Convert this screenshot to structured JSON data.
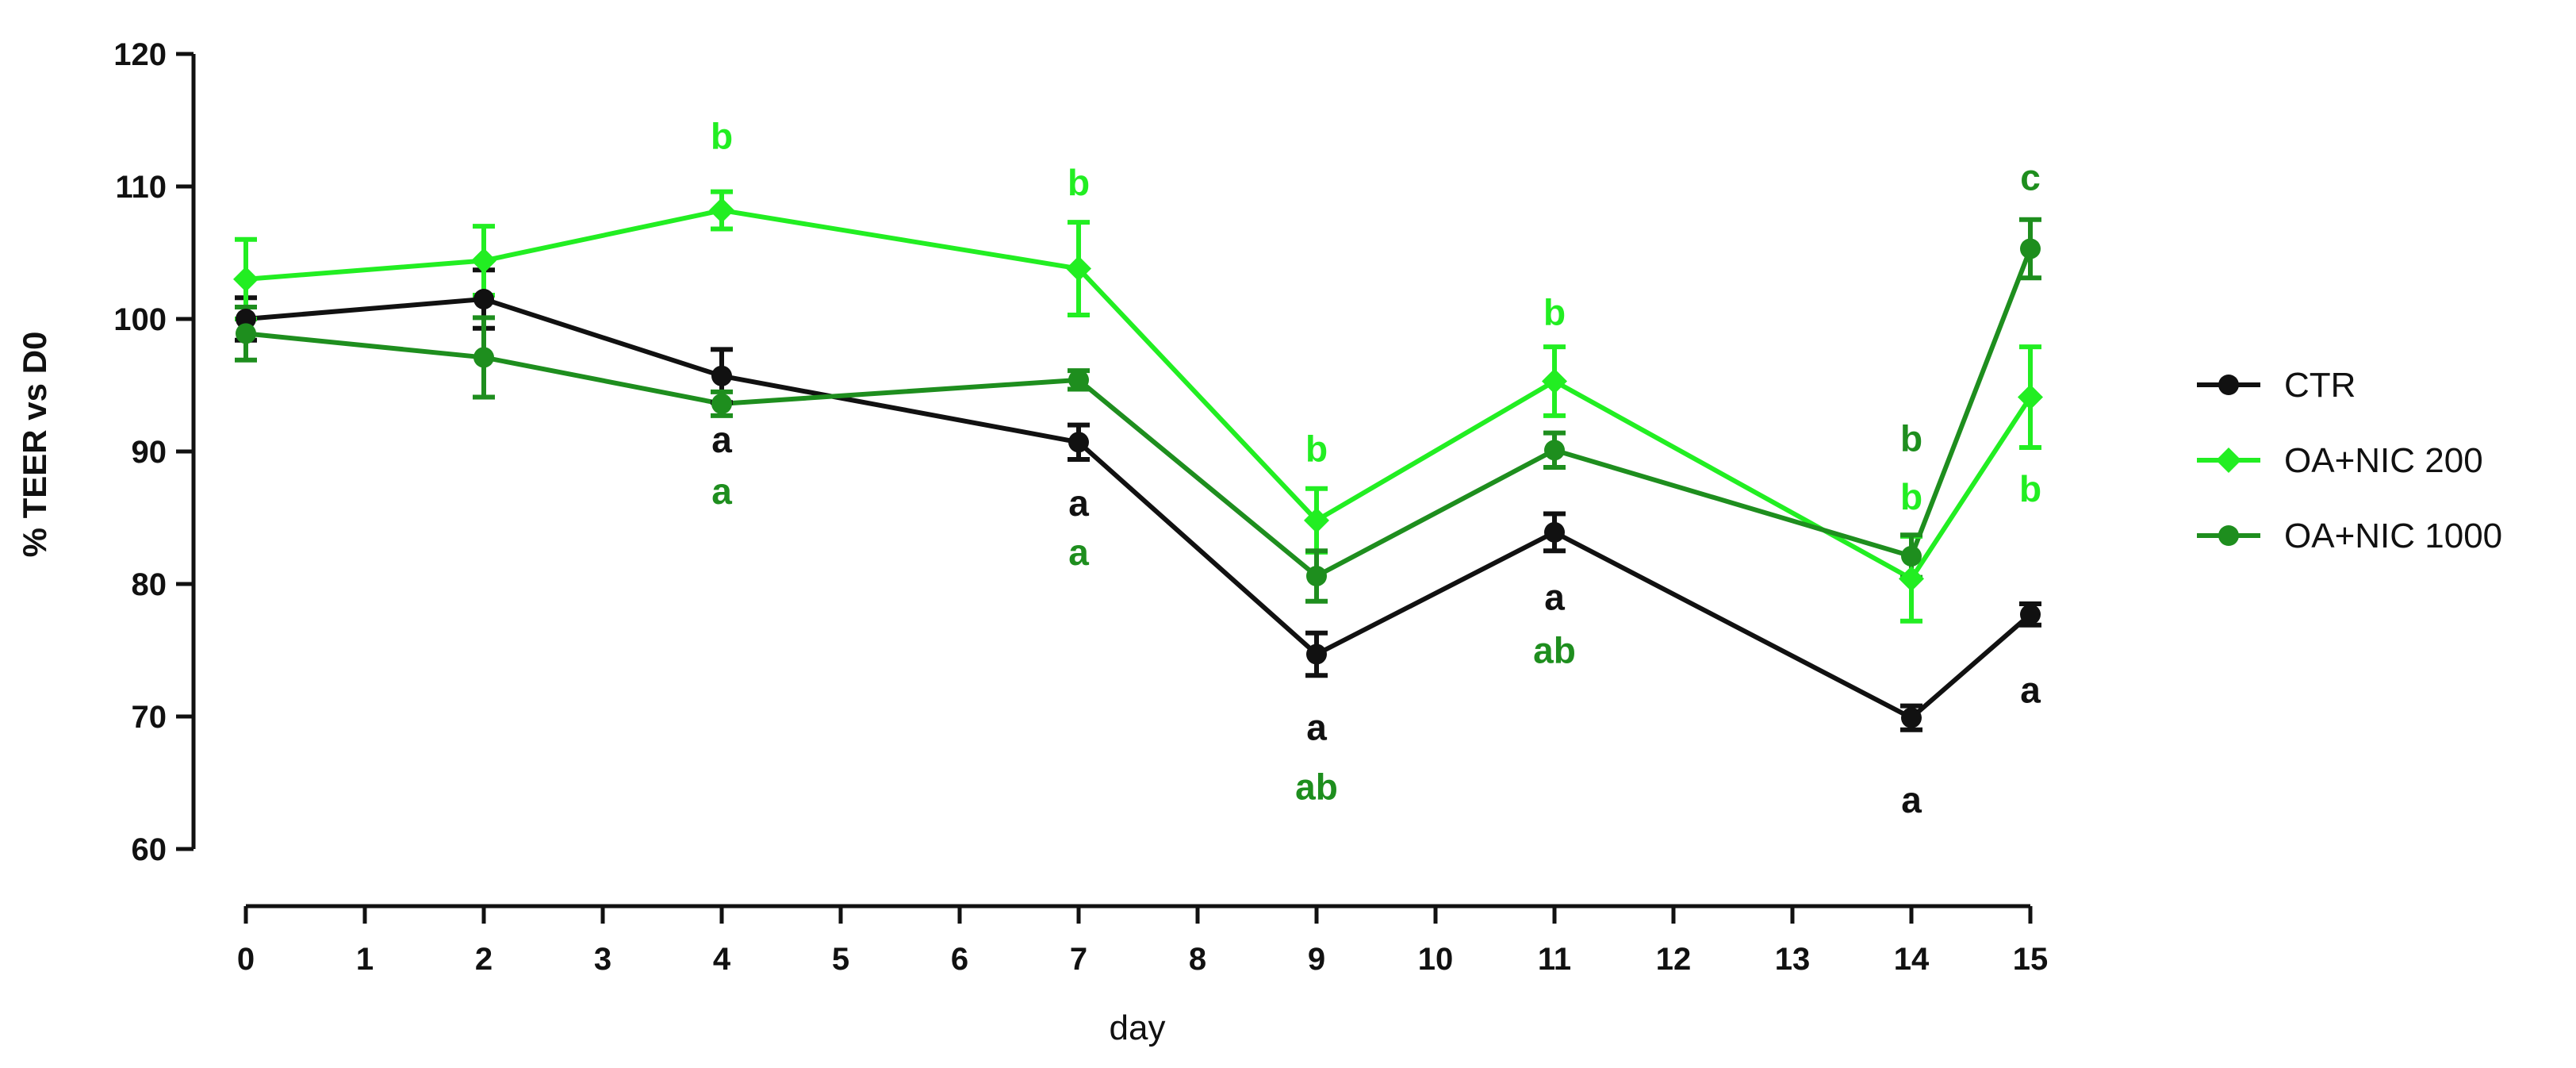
{
  "chart_data": {
    "type": "line",
    "title": "",
    "xlabel": "day",
    "ylabel": "% TEER vs D0",
    "xlim": [
      0,
      15
    ],
    "ylim": [
      60,
      120
    ],
    "xticks": [
      0,
      1,
      2,
      3,
      4,
      5,
      6,
      7,
      8,
      9,
      10,
      11,
      12,
      13,
      14,
      15
    ],
    "yticks": [
      60,
      70,
      80,
      90,
      100,
      110,
      120
    ],
    "legend_position": "right",
    "series": [
      {
        "name": "CTR",
        "color": "#111111",
        "marker": "circle",
        "x": [
          0,
          2,
          4,
          7,
          9,
          11,
          14,
          15
        ],
        "y": [
          100,
          101.5,
          95.7,
          90.7,
          74.7,
          83.9,
          69.9,
          77.7
        ],
        "err": [
          1.6,
          2.2,
          2.0,
          1.3,
          1.6,
          1.4,
          0.9,
          0.8
        ]
      },
      {
        "name": "OA+NIC 200",
        "color": "#22ee22",
        "marker": "diamond",
        "x": [
          0,
          2,
          4,
          7,
          9,
          11,
          14,
          15
        ],
        "y": [
          103.0,
          104.4,
          108.2,
          103.8,
          84.8,
          95.3,
          80.4,
          94.1
        ],
        "err": [
          3.0,
          2.6,
          1.4,
          3.5,
          2.4,
          2.6,
          3.2,
          3.8
        ]
      },
      {
        "name": "OA+NIC 1000",
        "color": "#1e8e1e",
        "marker": "circle",
        "x": [
          0,
          2,
          4,
          7,
          9,
          11,
          14,
          15
        ],
        "y": [
          98.9,
          97.1,
          93.6,
          95.4,
          80.6,
          90.1,
          82.1,
          105.3
        ],
        "err": [
          2.0,
          3.0,
          0.9,
          0.7,
          1.9,
          1.3,
          1.6,
          2.2
        ]
      }
    ],
    "annotations": [
      {
        "text": "b",
        "series": "OA+NIC 200",
        "x": 4,
        "y": 113.8
      },
      {
        "text": "a",
        "series": "CTR",
        "x": 4,
        "y": 90.9
      },
      {
        "text": "a",
        "series": "OA+NIC 1000",
        "x": 4,
        "y": 87.0
      },
      {
        "text": "b",
        "series": "OA+NIC 200",
        "x": 7,
        "y": 110.3
      },
      {
        "text": "a",
        "series": "CTR",
        "x": 7,
        "y": 86.1
      },
      {
        "text": "a",
        "series": "OA+NIC 1000",
        "x": 7,
        "y": 82.4
      },
      {
        "text": "b",
        "series": "OA+NIC 200",
        "x": 9,
        "y": 90.2
      },
      {
        "text": "a",
        "series": "CTR",
        "x": 9,
        "y": 69.2
      },
      {
        "text": "ab",
        "series": "OA+NIC 1000",
        "x": 9,
        "y": 64.7
      },
      {
        "text": "b",
        "series": "OA+NIC 200",
        "x": 11,
        "y": 100.5
      },
      {
        "text": "a",
        "series": "CTR",
        "x": 11,
        "y": 79.0
      },
      {
        "text": "ab",
        "series": "OA+NIC 1000",
        "x": 11,
        "y": 75.0
      },
      {
        "text": "b",
        "series": "OA+NIC 1000",
        "x": 14,
        "y": 91.0
      },
      {
        "text": "b",
        "series": "OA+NIC 200",
        "x": 14,
        "y": 86.6
      },
      {
        "text": "a",
        "series": "CTR",
        "x": 14,
        "y": 63.7
      },
      {
        "text": "c",
        "series": "OA+NIC 1000",
        "x": 15,
        "y": 110.7
      },
      {
        "text": "b",
        "series": "OA+NIC 200",
        "x": 15,
        "y": 87.2
      },
      {
        "text": "a",
        "series": "CTR",
        "x": 15,
        "y": 72.0
      }
    ]
  }
}
